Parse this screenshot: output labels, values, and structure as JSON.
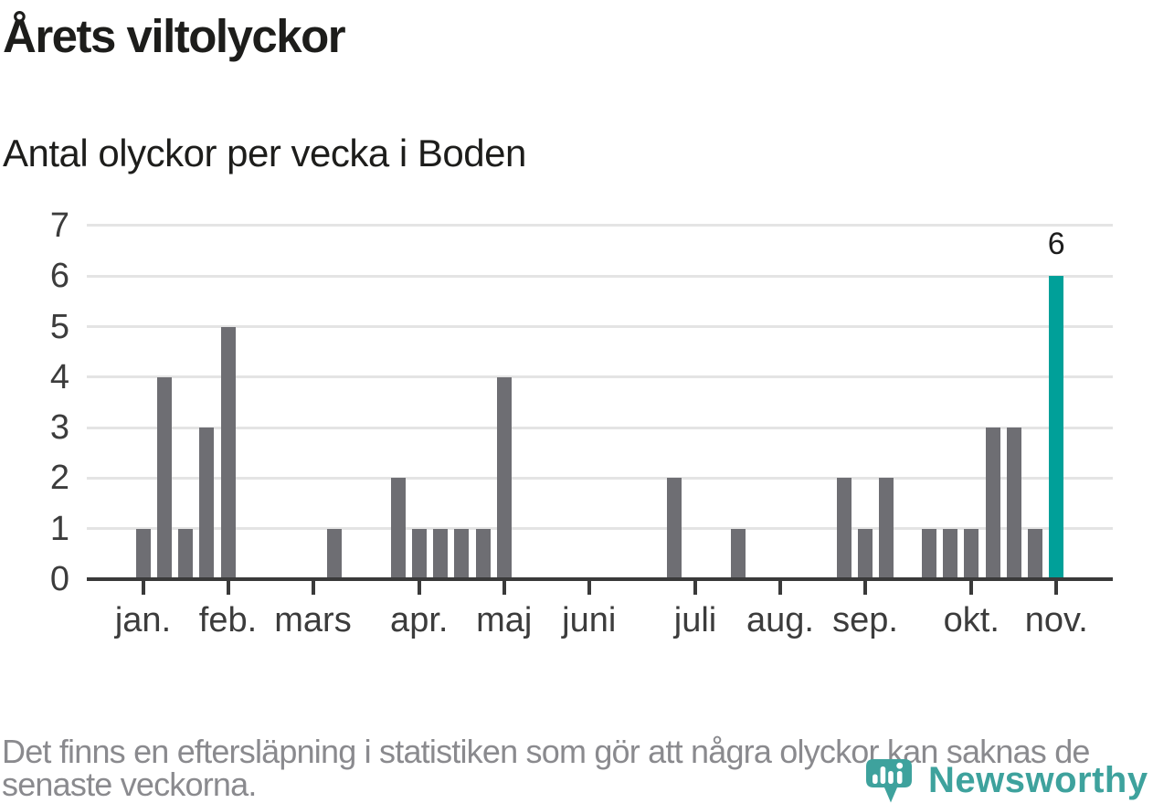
{
  "chart_data": {
    "type": "bar",
    "title": "Årets viltolyckor",
    "subtitle": "Antal olyckor per vecka i Boden",
    "x_unit": "week-of-year",
    "categories_weeks": [
      1,
      2,
      3,
      4,
      5,
      6,
      7,
      8,
      9,
      10,
      11,
      12,
      13,
      14,
      15,
      16,
      17,
      18,
      19,
      20,
      21,
      22,
      23,
      24,
      25,
      26,
      27,
      28,
      29,
      30,
      31,
      32,
      33,
      34,
      35,
      36,
      37,
      38,
      39,
      40,
      41,
      42,
      43,
      44
    ],
    "values": [
      1,
      4,
      1,
      3,
      5,
      0,
      0,
      0,
      0,
      1,
      0,
      0,
      2,
      1,
      1,
      1,
      1,
      4,
      0,
      0,
      0,
      0,
      0,
      0,
      0,
      2,
      0,
      0,
      1,
      0,
      0,
      0,
      0,
      2,
      1,
      2,
      0,
      1,
      1,
      1,
      3,
      3,
      1,
      6
    ],
    "annotated_bar": {
      "week": 44,
      "value": 6,
      "label": "6"
    },
    "month_ticks": [
      {
        "label": "jan.",
        "week": 1
      },
      {
        "label": "feb.",
        "week": 5
      },
      {
        "label": "mars",
        "week": 9
      },
      {
        "label": "apr.",
        "week": 14
      },
      {
        "label": "maj",
        "week": 18
      },
      {
        "label": "juni",
        "week": 22
      },
      {
        "label": "juli",
        "week": 27
      },
      {
        "label": "aug.",
        "week": 31
      },
      {
        "label": "sep.",
        "week": 35
      },
      {
        "label": "okt.",
        "week": 40
      },
      {
        "label": "nov.",
        "week": 44
      }
    ],
    "ylim": [
      0,
      7
    ],
    "yticks": [
      0,
      1,
      2,
      3,
      4,
      5,
      6,
      7
    ],
    "grid": true,
    "legend": false,
    "colors": {
      "bar": "#6e6e73",
      "highlight": "#00a099",
      "grid": "#e4e4e4",
      "axis": "#3a3a3a",
      "axis_text": "#3c3c3c",
      "value_label": "#1d1d1d"
    }
  },
  "footer": {
    "note_full": "Det finns en eftersläpning i statistiken som gör att några olyckor kan saknas de senaste veckorna.",
    "lines": [
      "Det finns en eftersläpning i statistiken som gör att några olyckor kan saknas de",
      "senaste veckorna."
    ],
    "logo_text": "Newsworthy",
    "logo_color": "#3ea29d"
  }
}
